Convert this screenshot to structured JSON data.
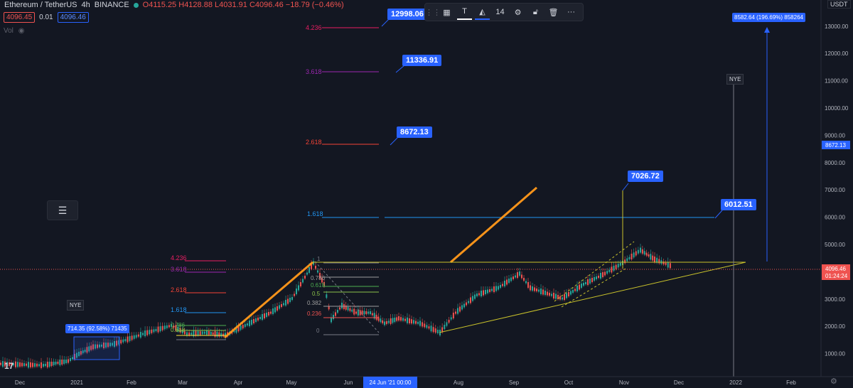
{
  "header": {
    "symbol": "Ethereum / TetherUS",
    "interval": "4h",
    "exchange": "BINANCE",
    "open": "O4115.25",
    "high": "H4128.88",
    "low": "L4031.91",
    "close": "C4096.46",
    "change": "−18.79 (−0.46%)",
    "bid": "4096.45",
    "spread": "0.01",
    "ask": "4096.46",
    "volume_label": "Vol"
  },
  "toolbar": {
    "line_width": "14"
  },
  "axis": {
    "currency": "USDT",
    "price_ticks": [
      "13000.00",
      "12000.00",
      "11000.00",
      "10000.00",
      "9000.00",
      "8000.00",
      "7000.00",
      "6000.00",
      "5000.00",
      "4000.00",
      "3000.00",
      "2000.00",
      "1000.00"
    ],
    "time_ticks": [
      "Dec",
      "2021",
      "Feb",
      "Mar",
      "Apr",
      "May",
      "Jun",
      "Aug",
      "Sep",
      "Oct",
      "Nov",
      "Dec",
      "2022",
      "Feb"
    ],
    "time_highlight": "24 Jun '21   00:00",
    "last_price": "4096.46",
    "countdown": "01:24:24",
    "crosshair_price": "8672.13"
  },
  "annotations": {
    "fib_upper": [
      "4.236",
      "3.618",
      "2.618",
      "1.618"
    ],
    "fib_lower_left": [
      "4.236",
      "3.618",
      "2.618",
      "1.618"
    ],
    "fib_retrace": [
      "1",
      "0.786",
      "0.618",
      "0.5",
      "0.382",
      "0.236",
      "0"
    ],
    "small_fib": [
      "0.786",
      "0.618"
    ],
    "labels": {
      "l12998": "12998.06",
      "l11336": "11336.91",
      "l8672": "8672.13",
      "l7026": "7026.72",
      "l6012": "6012.51",
      "l8582": "8582.64 (196.69%) 858264",
      "l714": "714.35 (92.58%) 71435",
      "nye1": "NYE",
      "nye2": "NYE"
    }
  },
  "colors": {
    "background": "#131722",
    "up": "#26a69a",
    "down": "#ef5350",
    "orange": "#f7931a",
    "yellow": "#c9c22b",
    "blue_label": "#2962ff"
  }
}
